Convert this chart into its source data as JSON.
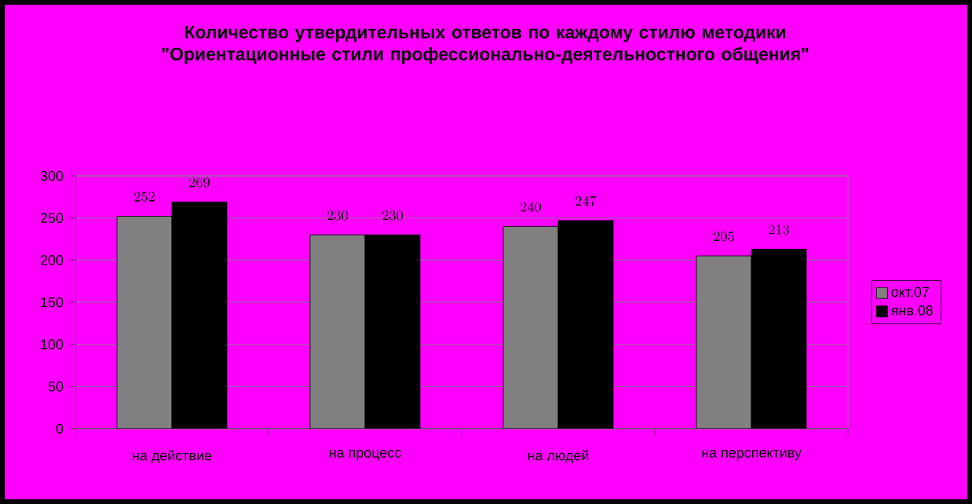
{
  "chart_data": {
    "type": "bar",
    "title": "Количество утвердительных ответов по каждому стилю методики \"Ориентационные стили профессионально-деятельностного общения\"",
    "categories": [
      "на действие",
      "на процесс",
      "на людей",
      "на перспективу"
    ],
    "series": [
      {
        "name": "окт.07",
        "color": "#808080",
        "values": [
          252,
          230,
          240,
          205
        ]
      },
      {
        "name": "янв.08",
        "color": "#000000",
        "values": [
          269,
          230,
          247,
          213
        ]
      }
    ],
    "ylim": [
      0,
      300
    ],
    "yticks": [
      0,
      50,
      100,
      150,
      200,
      250,
      300
    ],
    "grid": "y",
    "legend": "right",
    "data_labels": true
  }
}
